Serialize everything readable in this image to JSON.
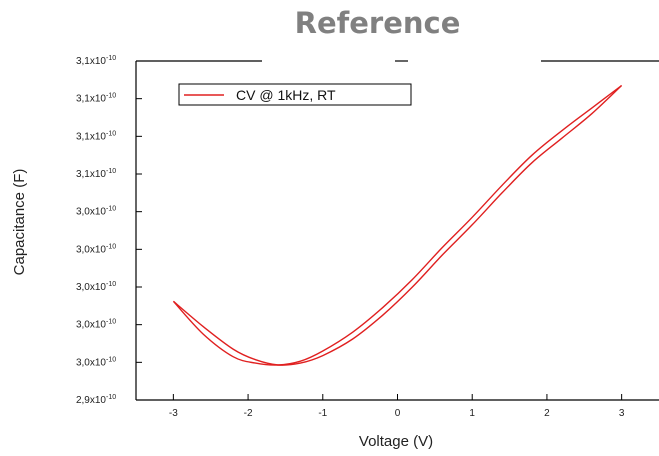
{
  "chart_data": {
    "type": "line",
    "title": "Reference",
    "xlabel": "Voltage (V)",
    "ylabel": "Capacitance (F)",
    "xlim": [
      -3.5,
      3.5
    ],
    "ylim": [
      0,
      9
    ],
    "x_ticks": [
      "-3",
      "-2",
      "-1",
      "0",
      "1",
      "2",
      "3"
    ],
    "y_ticks": [
      {
        "mantissa": "2,9x10",
        "exp": "-10"
      },
      {
        "mantissa": "3,0x10",
        "exp": "-10"
      },
      {
        "mantissa": "3,0x10",
        "exp": "-10"
      },
      {
        "mantissa": "3,0x10",
        "exp": "-10"
      },
      {
        "mantissa": "3,0x10",
        "exp": "-10"
      },
      {
        "mantissa": "3,0x10",
        "exp": "-10"
      },
      {
        "mantissa": "3,1x10",
        "exp": "-10"
      },
      {
        "mantissa": "3,1x10",
        "exp": "-10"
      },
      {
        "mantissa": "3,1x10",
        "exp": "-10"
      },
      {
        "mantissa": "3,1x10",
        "exp": "-10"
      }
    ],
    "legend": {
      "label": "CV @ 1kHz, RT",
      "position": "top-left"
    },
    "grid": false,
    "color": "#e02020",
    "series": [
      {
        "x": [
          -3.0,
          -2.6,
          -2.2,
          -1.9,
          -1.6,
          -1.3,
          -1.0,
          -0.6,
          -0.2,
          0.2,
          0.6,
          1.0,
          1.4,
          1.8,
          2.2,
          2.6,
          3.0
        ],
        "values": [
          2.62,
          1.75,
          1.15,
          0.98,
          0.93,
          1.03,
          1.3,
          1.8,
          2.45,
          3.2,
          4.05,
          4.85,
          5.7,
          6.5,
          7.15,
          7.75,
          8.35
        ]
      },
      {
        "x": [
          3.0,
          2.6,
          2.2,
          1.8,
          1.4,
          1.0,
          0.6,
          0.2,
          -0.2,
          -0.6,
          -1.0,
          -1.3,
          -1.6,
          -1.9,
          -2.2,
          -2.6,
          -3.0
        ],
        "values": [
          8.35,
          7.6,
          6.95,
          6.3,
          5.5,
          4.65,
          3.85,
          3.0,
          2.25,
          1.62,
          1.18,
          0.98,
          0.93,
          1.07,
          1.35,
          1.95,
          2.62
        ]
      }
    ]
  }
}
